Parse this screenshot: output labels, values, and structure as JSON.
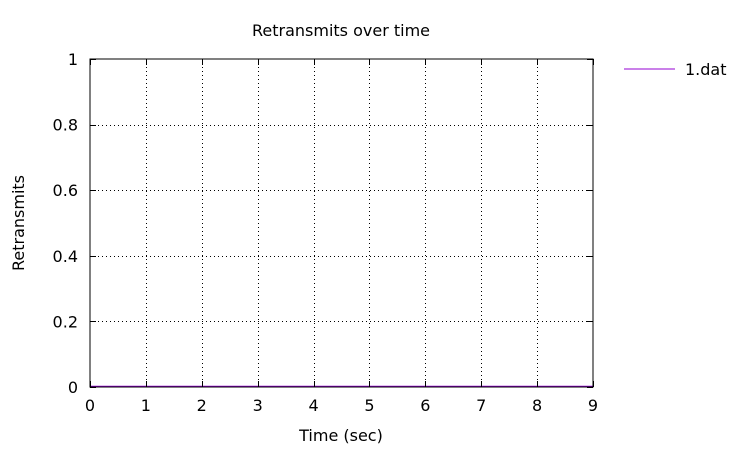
{
  "chart_data": {
    "type": "line",
    "title": "Retransmits over time",
    "xlabel": "Time (sec)",
    "ylabel": "Retransmits",
    "xlim": [
      0,
      9
    ],
    "ylim": [
      0,
      1
    ],
    "x_ticks": [
      0,
      1,
      2,
      3,
      4,
      5,
      6,
      7,
      8,
      9
    ],
    "y_ticks": [
      0,
      0.2,
      0.4,
      0.6,
      0.8,
      1
    ],
    "x_tick_labels": [
      "0",
      "1",
      "2",
      "3",
      "4",
      "5",
      "6",
      "7",
      "8",
      "9"
    ],
    "y_tick_labels": [
      "0",
      "0.2",
      "0.4",
      "0.6",
      "0.8",
      "1"
    ],
    "grid": true,
    "legend_position": "top-right outside",
    "series": [
      {
        "name": "1.dat",
        "color": "#9400d3",
        "x": [
          0,
          1,
          2,
          3,
          4,
          5,
          6,
          7,
          8,
          9
        ],
        "y": [
          0,
          0,
          0,
          0,
          0,
          0,
          0,
          0,
          0,
          0
        ]
      }
    ]
  }
}
